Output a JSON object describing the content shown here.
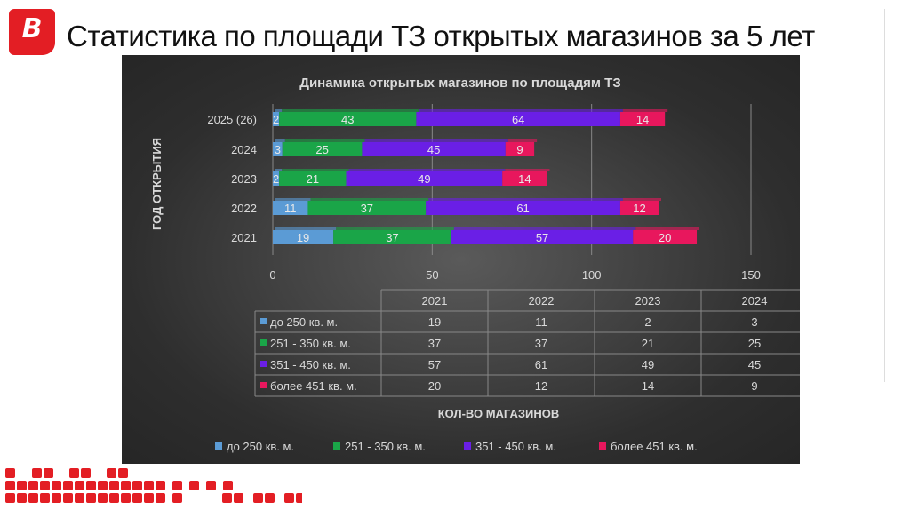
{
  "header": {
    "logo_letter": "B",
    "title": "Статистика по площади ТЗ открытых магазинов за 5 лет"
  },
  "chart_data": {
    "type": "bar",
    "orientation": "horizontal",
    "stacked": true,
    "title": "Динамика открытых магазинов по площадям ТЗ",
    "ylabel": "ГОД ОТКРЫТИЯ",
    "xlabel": "КОЛ-ВО МАГАЗИНОВ",
    "categories": [
      "2021",
      "2022",
      "2023",
      "2024",
      "2025 (26)"
    ],
    "xlim": [
      0,
      150
    ],
    "xticks": [
      0,
      50,
      100,
      150
    ],
    "grid": true,
    "legend": "bottom",
    "series": [
      {
        "name": "до 250 кв. м.",
        "color": "#5b9bd5",
        "values": [
          19,
          11,
          2,
          3,
          2
        ]
      },
      {
        "name": "251 - 350 кв. м.",
        "color": "#1aa548",
        "values": [
          37,
          37,
          21,
          25,
          43
        ]
      },
      {
        "name": "351 - 450 кв. м.",
        "color": "#6a1fe6",
        "values": [
          57,
          61,
          49,
          45,
          64
        ]
      },
      {
        "name": "более 451 кв. м.",
        "color": "#e8175d",
        "values": [
          20,
          12,
          14,
          9,
          14
        ]
      }
    ]
  }
}
